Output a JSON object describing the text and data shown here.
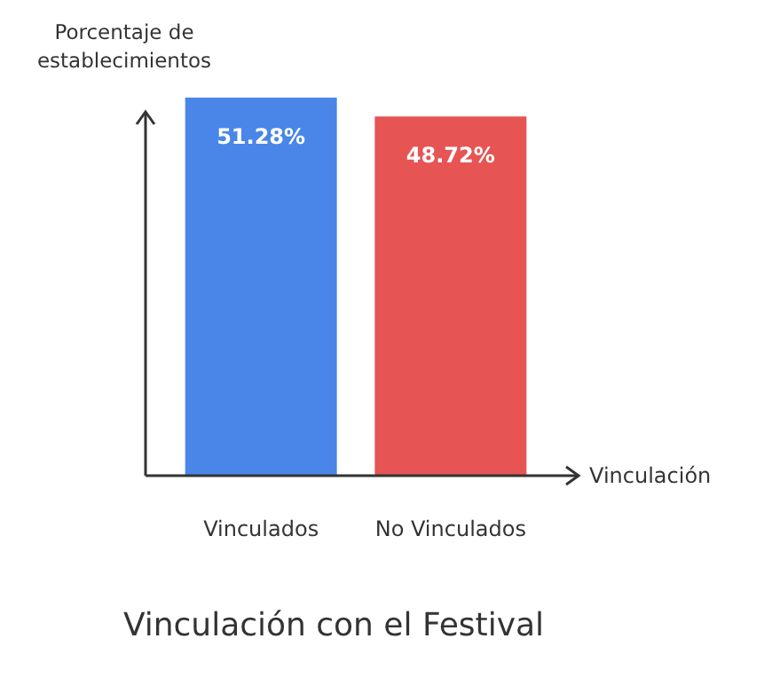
{
  "chart_data": {
    "type": "bar",
    "title": "Vinculación con el Festival",
    "xlabel": "Vinculación",
    "ylabel": "Porcentaje de establecimientos",
    "categories": [
      "Vinculados",
      "No Vinculados"
    ],
    "values": [
      51.28,
      48.72
    ],
    "colors": [
      "#4a86e8",
      "#e65454"
    ],
    "ylim": [
      0,
      52
    ],
    "data_labels": true,
    "value_labels": [
      "51.28%",
      "48.72%"
    ]
  }
}
